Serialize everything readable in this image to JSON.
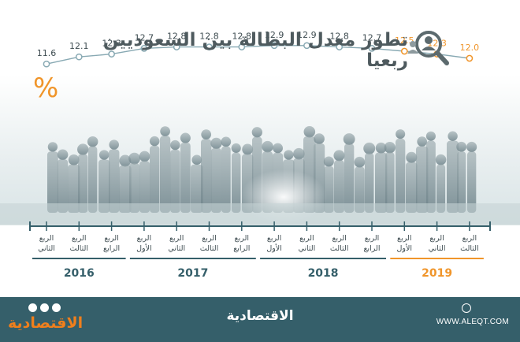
{
  "title": "تطور معدل البطالة بين السعوديين ربعيا",
  "percent_sign": "%",
  "colors": {
    "primary": "#355f6a",
    "highlight": "#f0952a",
    "line": "#88a9b3",
    "title": "#4e5a5e",
    "footer": "#355f6a"
  },
  "chart_data": {
    "type": "line",
    "title": "تطور معدل البطالة بين السعوديين ربعيا",
    "unit": "%",
    "x": [
      "الربع الثاني 2016",
      "الربع الثالث 2016",
      "الربع الرابع 2016",
      "الربع الأول 2017",
      "الربع الثاني 2017",
      "الربع الثالث 2017",
      "الربع الرابع 2017",
      "الربع الأول 2018",
      "الربع الثاني 2018",
      "الربع الثالث 2018",
      "الربع الرابع 2018",
      "الربع الأول 2019",
      "الربع الثاني 2019",
      "الربع الثالث 2019"
    ],
    "values": [
      11.6,
      12.1,
      12.3,
      12.7,
      12.8,
      12.8,
      12.8,
      12.9,
      12.9,
      12.8,
      12.7,
      12.5,
      12.3,
      12.0
    ],
    "value_labels": [
      "11.6",
      "12.1",
      "12.3",
      "12.7",
      "12.8",
      "12.8",
      "12.8",
      "12.9",
      "12.9",
      "12.8",
      "12.7",
      "12.5",
      "12.3",
      "12.0"
    ],
    "highlighted_from_index": 11,
    "quarter_labels": [
      [
        "الربع",
        "الثاني"
      ],
      [
        "الربع",
        "الثالث"
      ],
      [
        "الربع",
        "الرابع"
      ],
      [
        "الربع",
        "الأول"
      ],
      [
        "الربع",
        "الثاني"
      ],
      [
        "الربع",
        "الثالث"
      ],
      [
        "الربع",
        "الرابع"
      ],
      [
        "الربع",
        "الأول"
      ],
      [
        "الربع",
        "الثاني"
      ],
      [
        "الربع",
        "الثالث"
      ],
      [
        "الربع",
        "الرابع"
      ],
      [
        "الربع",
        "الأول"
      ],
      [
        "الربع",
        "الثاني"
      ],
      [
        "الربع",
        "الثالث"
      ]
    ],
    "years": [
      {
        "label": "2016",
        "from": 0,
        "to": 2,
        "highlight": false
      },
      {
        "label": "2017",
        "from": 3,
        "to": 6,
        "highlight": false
      },
      {
        "label": "2018",
        "from": 7,
        "to": 10,
        "highlight": false
      },
      {
        "label": "2019",
        "from": 11,
        "to": 13,
        "highlight": true
      }
    ],
    "ylim": [
      11.5,
      13.0
    ],
    "grid": false,
    "legend": "none"
  },
  "footer": {
    "brand": "الاقتصادية",
    "url": "WWW.ALEQT.COM",
    "logo_left": "الاقتصادية"
  }
}
